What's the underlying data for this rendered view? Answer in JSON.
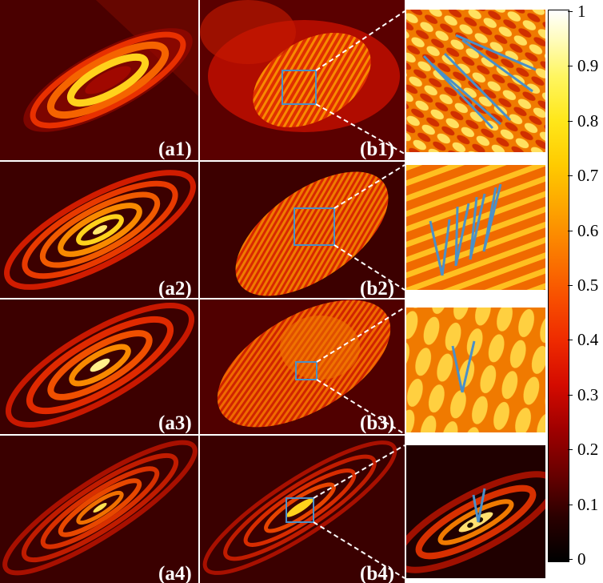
{
  "panel_labels": {
    "a1": "(a1)",
    "a2": "(a2)",
    "a3": "(a3)",
    "a4": "(a4)",
    "b1": "(b1)",
    "b2": "(b2)",
    "b3": "(b3)",
    "b4": "(b4)"
  },
  "colorbar": {
    "colormap": "hot",
    "ticks": [
      "0",
      "0.1",
      "0.2",
      "0.3",
      "0.4",
      "0.5",
      "0.6",
      "0.7",
      "0.8",
      "0.9",
      "1"
    ]
  },
  "colors": {
    "dark_red": "#4a0000",
    "red": "#c81400",
    "orange": "#f06a00",
    "yellow": "#ffd21c",
    "blue_annotation": "#4a90c8"
  }
}
